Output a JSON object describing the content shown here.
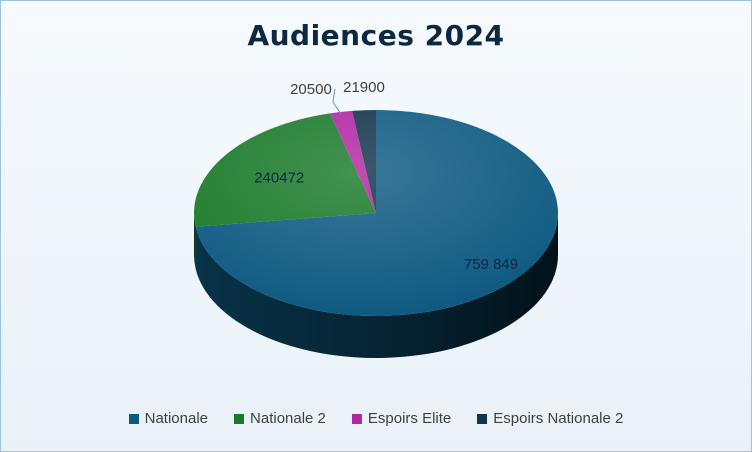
{
  "chart_data": {
    "type": "pie",
    "title": "Audiences 2024",
    "slices": [
      {
        "name": "Nationale",
        "value": 759849,
        "label": "759 849",
        "color": "#0f5a82"
      },
      {
        "name": "Nationale 2",
        "value": 240472,
        "label": "240472",
        "color": "#1a7a2a"
      },
      {
        "name": "Espoirs Elite",
        "value": 20500,
        "label": "20500",
        "color": "#b226a3"
      },
      {
        "name": "Espoirs Nationale 2",
        "value": 21900,
        "label": "21900",
        "color": "#123349"
      }
    ],
    "legend_position": "bottom",
    "style": "3d"
  }
}
